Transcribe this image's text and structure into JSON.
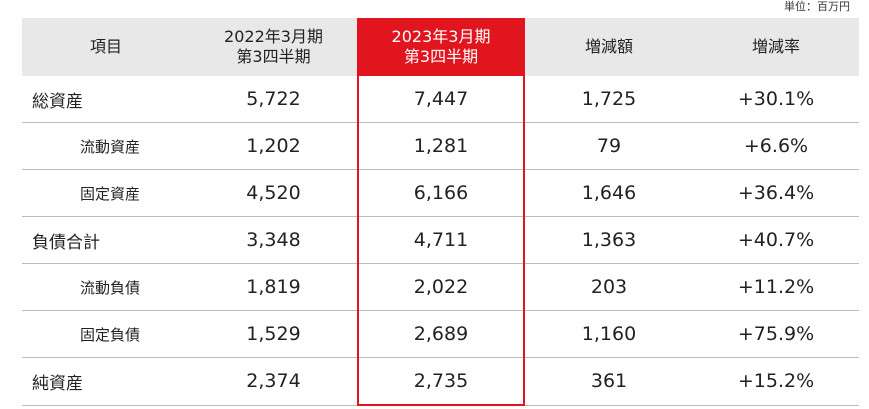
{
  "unit_label": "単位：百万円",
  "headers": {
    "item": "項目",
    "prev_line1": "2022年3月期",
    "prev_line2": "第3四半期",
    "curr_line1": "2023年3月期",
    "curr_line2": "第3四半期",
    "change": "増減額",
    "rate": "増減率"
  },
  "rows": [
    {
      "label": "総資産",
      "prev": "5,722",
      "curr": "7,447",
      "change": "1,725",
      "rate": "+30.1%"
    },
    {
      "label": "流動資産",
      "prev": "1,202",
      "curr": "1,281",
      "change": "79",
      "rate": "+6.6%"
    },
    {
      "label": "固定資産",
      "prev": "4,520",
      "curr": "6,166",
      "change": "1,646",
      "rate": "+36.4%"
    },
    {
      "label": "負債合計",
      "prev": "3,348",
      "curr": "4,711",
      "change": "1,363",
      "rate": "+40.7%"
    },
    {
      "label": "流動負債",
      "prev": "1,819",
      "curr": "2,022",
      "change": "203",
      "rate": "+11.2%"
    },
    {
      "label": "固定負債",
      "prev": "1,529",
      "curr": "2,689",
      "change": "1,160",
      "rate": "+75.9%"
    },
    {
      "label": "純資産",
      "prev": "2,374",
      "curr": "2,735",
      "change": "361",
      "rate": "+15.2%"
    }
  ],
  "colors": {
    "highlight": "#e0151e",
    "header_bg": "#e8e8e8",
    "rule": "#bdbdbd"
  }
}
